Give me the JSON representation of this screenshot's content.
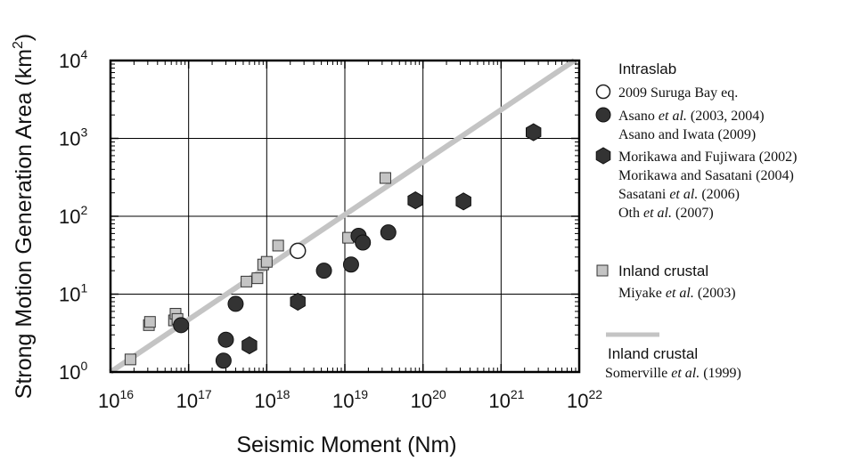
{
  "chart_data": {
    "type": "scatter",
    "x_scale": "log",
    "y_scale": "log",
    "xlabel": "Seismic Moment (Nm)",
    "ylabel_main": "Strong Motion Generation Area (km",
    "ylabel_sup": "2",
    "ylabel_close": ")",
    "xlim": [
      1e+16,
      1e+22
    ],
    "ylim": [
      1,
      10000
    ],
    "grid": true,
    "x_ticks": [
      {
        "base": "10",
        "exp": "16",
        "value": 1e+16
      },
      {
        "base": "10",
        "exp": "17",
        "value": 1e+17
      },
      {
        "base": "10",
        "exp": "18",
        "value": 1e+18
      },
      {
        "base": "10",
        "exp": "19",
        "value": 1e+19
      },
      {
        "base": "10",
        "exp": "20",
        "value": 1e+20
      },
      {
        "base": "10",
        "exp": "21",
        "value": 1e+21
      },
      {
        "base": "10",
        "exp": "22",
        "value": 1e+22
      }
    ],
    "y_ticks": [
      {
        "base": "10",
        "exp": "0",
        "value": 1
      },
      {
        "base": "10",
        "exp": "1",
        "value": 10
      },
      {
        "base": "10",
        "exp": "2",
        "value": 100
      },
      {
        "base": "10",
        "exp": "3",
        "value": 1000
      },
      {
        "base": "10",
        "exp": "4",
        "value": 10000
      }
    ],
    "series": [
      {
        "legend_marker": "open-circle",
        "marker": "open-circle",
        "color": "#ffffff",
        "points": [
          [
            2.5e+18,
            36
          ]
        ]
      },
      {
        "legend_marker": "filled-circle",
        "marker": "filled-circle",
        "color": "#333333",
        "points": [
          [
            8e+16,
            4.0
          ],
          [
            2.8e+17,
            1.4
          ],
          [
            3e+17,
            2.6
          ],
          [
            4e+17,
            7.5
          ],
          [
            5.4e+18,
            20
          ],
          [
            1.2e+19,
            24
          ],
          [
            1.5e+19,
            56
          ],
          [
            1.7e+19,
            46
          ],
          [
            3.6e+19,
            62
          ]
        ]
      },
      {
        "legend_marker": "filled-hexagon",
        "marker": "filled-hexagon",
        "color": "#333333",
        "points": [
          [
            6e+17,
            2.2
          ],
          [
            2.5e+18,
            8.0
          ],
          [
            8e+19,
            160
          ],
          [
            3.3e+20,
            155
          ],
          [
            2.6e+21,
            1200
          ]
        ]
      },
      {
        "legend_marker": "gray-square",
        "marker": "gray-square",
        "color": "#c4c4c4",
        "points": [
          [
            1.8e+16,
            1.45
          ],
          [
            3.1e+16,
            4.0
          ],
          [
            3.2e+16,
            4.4
          ],
          [
            6.5e+16,
            4.6
          ],
          [
            6.8e+16,
            5.6
          ],
          [
            7.2e+16,
            4.8
          ],
          [
            5.5e+17,
            14.5
          ],
          [
            7.6e+17,
            16
          ],
          [
            9e+17,
            24
          ],
          [
            1e+18,
            26
          ],
          [
            1.4e+18,
            42
          ],
          [
            1.1e+19,
            53
          ],
          [
            3.3e+19,
            310
          ]
        ]
      }
    ],
    "reference_line": {
      "color": "#c4c4c4",
      "x": [
        1e+16,
        1e+22
      ],
      "y": [
        1.0,
        11000
      ]
    }
  },
  "legend": {
    "intraslab_heading": "Intraslab",
    "suruga": "2009 Suruga Bay eq.",
    "asano_pre": "Asano ",
    "asano_etal": "et al.",
    "asano_post": " (2003, 2004)",
    "asano_iwata": "Asano and Iwata (2009)",
    "morikawa_fujiwara": "Morikawa and Fujiwara (2002)",
    "morikawa_sasatani": "Morikawa and Sasatani (2004)",
    "sasatani_pre": "Sasatani ",
    "sasatani_etal": "et al.",
    "sasatani_post": " (2006)",
    "oth_pre": "Oth ",
    "oth_etal": "et al.",
    "oth_post": " (2007)",
    "inland_heading": "Inland crustal",
    "miyake_pre": "Miyake  ",
    "miyake_etal": "et al.",
    "miyake_post": " (2003)",
    "line_heading": "Inland crustal",
    "somerville_pre": "Somerville ",
    "somerville_etal": "et al.",
    "somerville_post": " (1999)"
  }
}
